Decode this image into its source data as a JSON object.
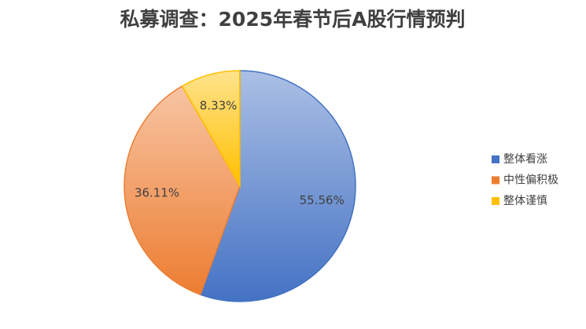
{
  "chart_data": {
    "type": "pie",
    "title": "私募调查：2025年春节后A股行情预判",
    "categories": [
      "整体看涨",
      "中性偏积极",
      "整体谨慎"
    ],
    "values": [
      55.56,
      36.11,
      8.33
    ],
    "value_labels": [
      "55.56%",
      "36.11%",
      "8.33%"
    ],
    "colors": [
      "#4472c4",
      "#ed7d31",
      "#ffc000"
    ],
    "legend": "right"
  }
}
